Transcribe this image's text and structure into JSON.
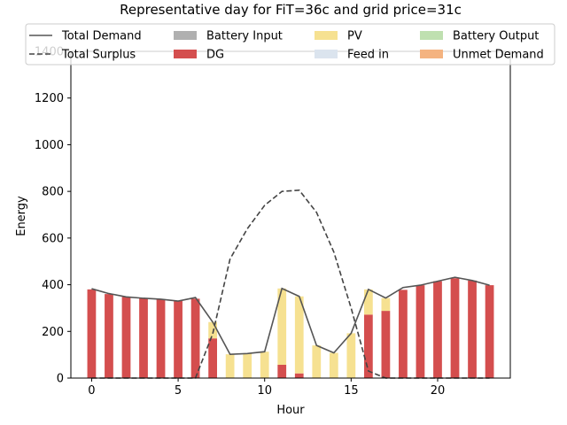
{
  "chart_data": {
    "type": "bar",
    "title": "Representative day for FiT=36c and grid price=31c",
    "xlabel": "Hour",
    "ylabel": "Energy",
    "xlim": [
      -1.2,
      24.2
    ],
    "ylim": [
      0,
      1400
    ],
    "xticks": [
      0,
      5,
      10,
      15,
      20
    ],
    "yticks": [
      0,
      200,
      400,
      600,
      800,
      1000,
      1200,
      1400
    ],
    "grid": false,
    "legend_position": "top",
    "x": [
      0,
      1,
      2,
      3,
      4,
      5,
      6,
      7,
      8,
      9,
      10,
      11,
      12,
      13,
      14,
      15,
      16,
      17,
      18,
      19,
      20,
      21,
      22,
      23
    ],
    "bar_series": [
      {
        "name": "Battery Input",
        "color": "#b0b0b0",
        "values": [
          0,
          0,
          0,
          0,
          0,
          0,
          0,
          0,
          0,
          0,
          0,
          0,
          0,
          0,
          0,
          0,
          0,
          0,
          0,
          0,
          0,
          0,
          0,
          0
        ]
      },
      {
        "name": "DG",
        "color": "#d44e4e",
        "values": [
          380,
          360,
          348,
          342,
          338,
          330,
          340,
          170,
          0,
          0,
          0,
          57,
          20,
          0,
          0,
          0,
          272,
          288,
          378,
          398,
          415,
          428,
          418,
          398
        ]
      },
      {
        "name": "PV",
        "color": "#f6e191",
        "values": [
          0,
          0,
          0,
          0,
          0,
          0,
          0,
          70,
          102,
          105,
          113,
          327,
          330,
          140,
          108,
          192,
          108,
          55,
          0,
          0,
          0,
          0,
          0,
          0
        ]
      },
      {
        "name": "Feed in",
        "color": "#dbe4ee",
        "values": [
          0,
          0,
          0,
          0,
          0,
          0,
          0,
          0,
          0,
          0,
          0,
          0,
          0,
          0,
          0,
          0,
          0,
          0,
          0,
          0,
          0,
          0,
          0,
          0
        ]
      },
      {
        "name": "Battery Output",
        "color": "#bfe0b0",
        "values": [
          0,
          0,
          0,
          0,
          0,
          0,
          0,
          0,
          0,
          0,
          0,
          0,
          0,
          0,
          0,
          0,
          0,
          0,
          0,
          0,
          0,
          0,
          0,
          0
        ]
      },
      {
        "name": "Unmet Demand",
        "color": "#f4b380",
        "values": [
          0,
          0,
          0,
          0,
          0,
          0,
          0,
          0,
          0,
          0,
          0,
          0,
          0,
          0,
          0,
          0,
          0,
          0,
          0,
          0,
          0,
          0,
          0,
          0
        ]
      }
    ],
    "line_series": [
      {
        "name": "Total Demand",
        "color": "#555555",
        "dash": "solid",
        "values": [
          383,
          362,
          348,
          342,
          338,
          330,
          345,
          240,
          102,
          105,
          113,
          384,
          350,
          140,
          108,
          192,
          380,
          343,
          388,
          398,
          415,
          432,
          418,
          398
        ]
      },
      {
        "name": "Total Surplus",
        "color": "#444444",
        "dash": "dashed",
        "values": [
          0,
          0,
          0,
          0,
          0,
          0,
          0,
          190,
          510,
          640,
          740,
          800,
          805,
          710,
          540,
          300,
          30,
          0,
          0,
          0,
          0,
          0,
          0,
          0
        ]
      }
    ],
    "legend_order": [
      "Total Demand",
      "Battery Input",
      "PV",
      "Battery Output",
      "Total Surplus",
      "DG",
      "Feed in",
      "Unmet Demand"
    ]
  }
}
